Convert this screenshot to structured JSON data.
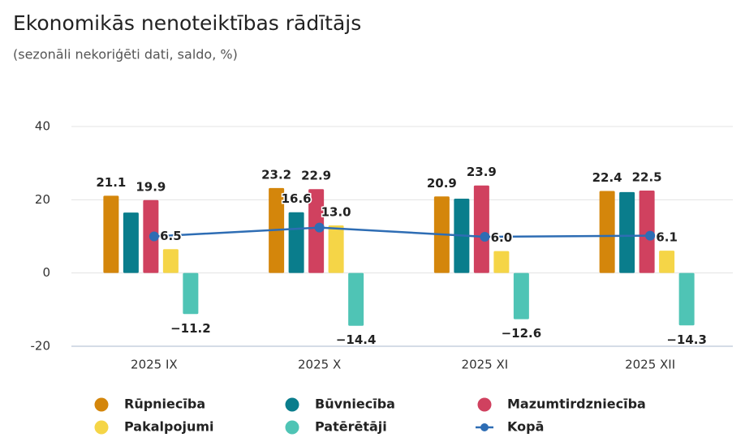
{
  "chart_data": {
    "type": "bar",
    "title": "Ekonomikās nenoteiktības rādītājs",
    "subtitle": "(sezonāli nekoriģēti dati, saldo, %)",
    "categories": [
      "2025 IX",
      "2025 X",
      "2025 XI",
      "2025 XII"
    ],
    "ylim": [
      -20,
      40
    ],
    "yticks": [
      -20,
      0,
      20,
      40
    ],
    "grid": true,
    "series": [
      {
        "name": "Rūpniecība",
        "color": "#d4860b",
        "values": [
          21.1,
          23.2,
          20.9,
          22.4
        ],
        "value_labels": [
          "21.1",
          "23.2",
          "20.9",
          "22.4"
        ]
      },
      {
        "name": "Būvniecība",
        "color": "#0a7d8c",
        "values": [
          16.5,
          16.6,
          20.3,
          22.1
        ],
        "value_labels": [
          null,
          "16.6",
          null,
          null
        ]
      },
      {
        "name": "Mazumtirdzniecība",
        "color": "#d0415f",
        "values": [
          19.9,
          22.9,
          23.9,
          22.5
        ],
        "value_labels": [
          "19.9",
          "22.9",
          "23.9",
          "22.5"
        ]
      },
      {
        "name": "Pakalpojumi",
        "color": "#f5d547",
        "values": [
          6.5,
          13.0,
          6.0,
          6.1
        ],
        "value_labels": [
          "6.5",
          "13.0",
          "6.0",
          "6.1"
        ]
      },
      {
        "name": "Patērētāji",
        "color": "#4fc4b5",
        "values": [
          -11.2,
          -14.4,
          -12.6,
          -14.3
        ],
        "value_labels": [
          "−11.2",
          "−14.4",
          "−12.6",
          "−14.3"
        ]
      },
      {
        "name": "Kopā",
        "color": "#2e6db4",
        "type": "line",
        "values": [
          10.0,
          12.4,
          9.9,
          10.2
        ]
      }
    ]
  }
}
